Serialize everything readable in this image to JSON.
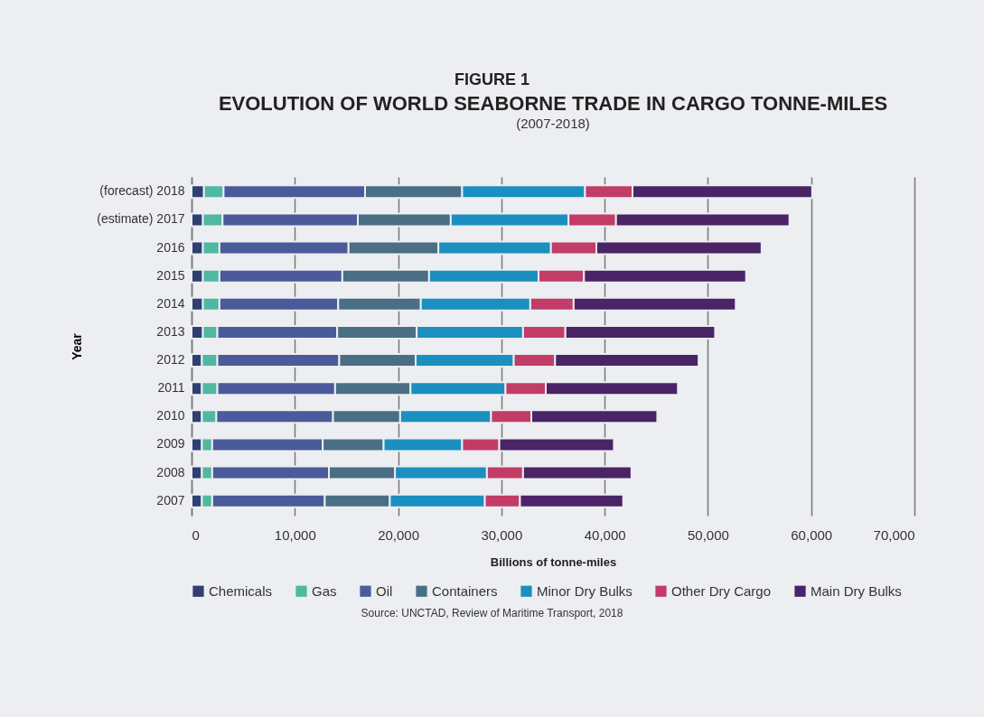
{
  "chart_data": {
    "type": "bar",
    "orientation": "horizontal",
    "stacked": true,
    "title": "EVOLUTION OF WORLD SEABORNE TRADE IN CARGO TONNE-MILES",
    "subtitle": "(2007-2018)",
    "annotations": [
      "FIGURE 1",
      "Source: UNCTAD, Review of Maritime Transport, 2018"
    ],
    "xlabel": "Billions of tonne-miles",
    "ylabel": "Year",
    "categories": [
      "(forecast) 2018",
      "(estimate) 2017",
      "2016",
      "2015",
      "2014",
      "2013",
      "2012",
      "2011",
      "2010",
      "2009",
      "2008",
      "2007"
    ],
    "series": [
      {
        "name": "Chemicals",
        "color": "#2f3f73",
        "values": [
          1200,
          1100,
          1100,
          1100,
          1100,
          1100,
          1000,
          1000,
          1000,
          1000,
          1000,
          1000
        ]
      },
      {
        "name": "Gas",
        "color": "#4fb8a0",
        "values": [
          1900,
          1900,
          1600,
          1600,
          1600,
          1400,
          1500,
          1500,
          1400,
          1000,
          1000,
          1000
        ]
      },
      {
        "name": "Oil",
        "color": "#4a5a9a",
        "values": [
          13700,
          13100,
          12500,
          11900,
          11500,
          11600,
          11800,
          11400,
          11300,
          10700,
          11300,
          10900
        ]
      },
      {
        "name": "Containers",
        "color": "#4a6f85",
        "values": [
          9400,
          9000,
          8700,
          8400,
          8000,
          7700,
          7400,
          7300,
          6500,
          5900,
          6400,
          6300
        ]
      },
      {
        "name": "Minor Dry Bulks",
        "color": "#1a8fc0",
        "values": [
          11900,
          11400,
          10900,
          10600,
          10600,
          10300,
          9500,
          9200,
          8800,
          7600,
          8900,
          9200
        ]
      },
      {
        "name": "Other Dry Cargo",
        "color": "#c23c68",
        "values": [
          4600,
          4600,
          4400,
          4400,
          4200,
          4100,
          4000,
          3900,
          3900,
          3600,
          3500,
          3400
        ]
      },
      {
        "name": "Main Dry Bulks",
        "color": "#4a2466",
        "values": [
          17400,
          16800,
          16000,
          15700,
          15700,
          14500,
          13900,
          12800,
          12200,
          11100,
          10500,
          10000
        ]
      }
    ],
    "xlim": [
      0,
      70000
    ],
    "xticks": [
      0,
      {
        "value": 10000,
        "label": "10,000"
      },
      {
        "value": 20000,
        "label": "20,000"
      },
      {
        "value": 30000,
        "label": "30,000"
      },
      {
        "value": 40000,
        "label": "40,000"
      },
      {
        "value": 50000,
        "label": "50,000"
      },
      {
        "value": 60000,
        "label": "60,000"
      },
      {
        "value": 70000,
        "label": "70,000"
      }
    ],
    "grid": "x",
    "legend": "bottom"
  }
}
